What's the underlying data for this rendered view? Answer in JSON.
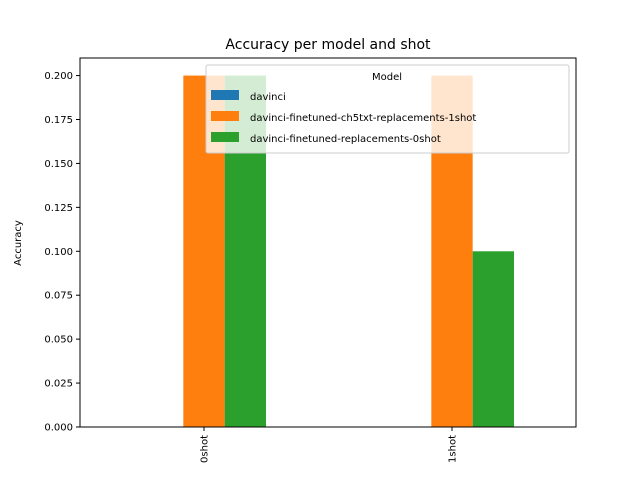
{
  "chart_data": {
    "type": "bar",
    "title": "Accuracy per model and shot",
    "xlabel": "",
    "ylabel": "Accuracy",
    "categories": [
      "0shot",
      "1shot"
    ],
    "ylim": [
      0,
      0.21
    ],
    "yticks": [
      0.0,
      0.025,
      0.05,
      0.075,
      0.1,
      0.125,
      0.15,
      0.175,
      0.2
    ],
    "ytick_labels": [
      "0.000",
      "0.025",
      "0.050",
      "0.075",
      "0.100",
      "0.125",
      "0.150",
      "0.175",
      "0.200"
    ],
    "grid": false,
    "legend": {
      "title": "Model",
      "placement": "upper-right"
    },
    "series": [
      {
        "name": "davinci",
        "color": "#1f77b4",
        "values": [
          0.0,
          0.0
        ]
      },
      {
        "name": "davinci-finetuned-ch5txt-replacements-1shot",
        "color": "#ff7f0e",
        "values": [
          0.2,
          0.2
        ]
      },
      {
        "name": "davinci-finetuned-replacements-0shot",
        "color": "#2ca02c",
        "values": [
          0.2,
          0.1
        ]
      }
    ]
  }
}
